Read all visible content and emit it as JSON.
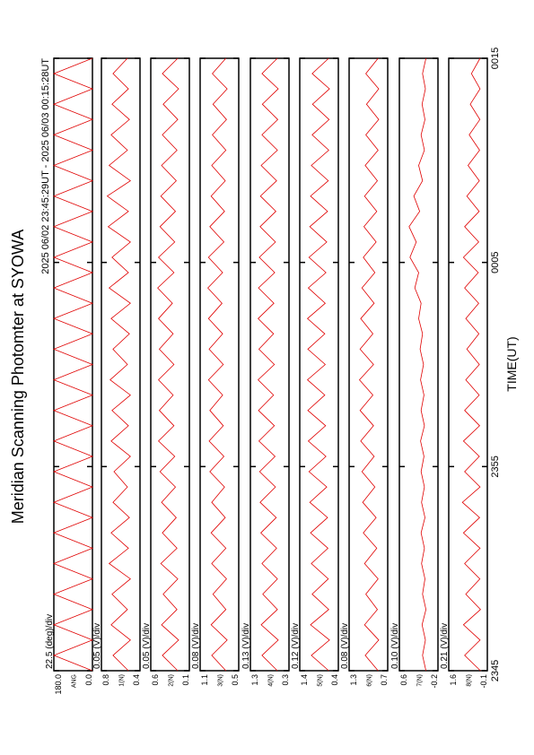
{
  "chart_data": {
    "type": "line",
    "title": "Meridian Scanning Photomter at SYOWA",
    "subtitle": "2025 06/02 23:45:29UT - 2025 06/03 00:15:28UT",
    "xlabel": "TIME(UT)",
    "xlim": [
      0,
      30
    ],
    "xticks": [
      {
        "value": 0,
        "label": "2345"
      },
      {
        "value": 10,
        "label": "2355"
      },
      {
        "value": 20,
        "label": "0005"
      },
      {
        "value": 30,
        "label": "0015"
      }
    ],
    "color": "#e00000",
    "x": [
      0,
      0.75,
      1.5,
      2.25,
      3,
      3.75,
      4.5,
      5.25,
      6,
      6.75,
      7.5,
      8.25,
      9,
      9.75,
      10.5,
      11.25,
      12,
      12.75,
      13.5,
      14.25,
      15,
      15.75,
      16.5,
      17.25,
      18,
      18.75,
      19.5,
      20.25,
      21,
      21.75,
      22.5,
      23.25,
      24,
      24.75,
      25.5,
      26.25,
      27,
      27.75,
      28.5,
      29.25,
      30
    ],
    "panels": [
      {
        "name": "ANG",
        "scale": "22.5 (deg)/div",
        "ylim": [
          0,
          180
        ],
        "yticks": [
          {
            "value": 0,
            "label": "0.0"
          },
          {
            "value": 180,
            "label": "180.0"
          }
        ],
        "values": [
          0,
          180,
          0,
          180,
          0,
          180,
          0,
          180,
          0,
          180,
          0,
          180,
          0,
          180,
          0,
          180,
          0,
          180,
          0,
          180,
          0,
          180,
          0,
          180,
          0,
          180,
          0,
          180,
          0,
          180,
          0,
          180,
          0,
          180,
          0,
          180,
          0,
          180,
          0,
          180,
          0
        ]
      },
      {
        "name": "1(N)",
        "scale": "0.05 (V)/div",
        "ylim": [
          0.4,
          0.8
        ],
        "yticks": [
          0.4,
          0.8
        ],
        "values": [
          0.52,
          0.68,
          0.5,
          0.7,
          0.53,
          0.69,
          0.5,
          0.72,
          0.52,
          0.7,
          0.51,
          0.68,
          0.53,
          0.67,
          0.5,
          0.7,
          0.52,
          0.69,
          0.5,
          0.71,
          0.53,
          0.68,
          0.51,
          0.7,
          0.5,
          0.72,
          0.52,
          0.69,
          0.5,
          0.73,
          0.52,
          0.74,
          0.5,
          0.72,
          0.53,
          0.7,
          0.51,
          0.69,
          0.52,
          0.68,
          0.53
        ]
      },
      {
        "name": "2(N)",
        "scale": "0.05 (V)/div",
        "ylim": [
          0.1,
          0.6
        ],
        "yticks": [
          0.1,
          0.6
        ],
        "values": [
          0.25,
          0.45,
          0.24,
          0.46,
          0.26,
          0.44,
          0.25,
          0.47,
          0.26,
          0.45,
          0.27,
          0.46,
          0.28,
          0.48,
          0.29,
          0.5,
          0.3,
          0.49,
          0.31,
          0.5,
          0.3,
          0.49,
          0.31,
          0.5,
          0.32,
          0.51,
          0.3,
          0.5,
          0.29,
          0.48,
          0.28,
          0.47,
          0.27,
          0.46,
          0.26,
          0.45,
          0.25,
          0.44,
          0.24,
          0.45,
          0.25
        ]
      },
      {
        "name": "3(N)",
        "scale": "0.08 (V)/div",
        "ylim": [
          0.5,
          1.1
        ],
        "yticks": [
          0.5,
          1.1
        ],
        "values": [
          0.7,
          0.92,
          0.68,
          0.93,
          0.7,
          0.9,
          0.69,
          0.92,
          0.7,
          0.93,
          0.71,
          0.92,
          0.72,
          0.95,
          0.73,
          0.96,
          0.74,
          0.95,
          0.75,
          0.97,
          0.74,
          0.96,
          0.75,
          0.97,
          0.76,
          0.98,
          0.75,
          0.97,
          0.73,
          0.95,
          0.72,
          0.93,
          0.71,
          0.92,
          0.7,
          0.91,
          0.69,
          0.9,
          0.68,
          0.91,
          0.7
        ]
      },
      {
        "name": "4(N)",
        "scale": "0.13 (V)/div",
        "ylim": [
          0.3,
          1.3
        ],
        "yticks": [
          0.3,
          1.3
        ],
        "values": [
          0.6,
          1.0,
          0.58,
          1.02,
          0.6,
          0.98,
          0.6,
          1.0,
          0.62,
          1.03,
          0.63,
          1.05,
          0.65,
          1.06,
          0.66,
          1.08,
          0.68,
          1.09,
          0.7,
          1.1,
          0.68,
          1.08,
          0.7,
          1.1,
          0.69,
          1.09,
          0.67,
          1.07,
          0.65,
          1.05,
          0.64,
          1.04,
          0.62,
          1.02,
          0.6,
          1.0,
          0.59,
          0.99,
          0.58,
          1.0,
          0.6
        ]
      },
      {
        "name": "5(N)",
        "scale": "0.12 (V)/div",
        "ylim": [
          0.4,
          1.4
        ],
        "yticks": [
          0.4,
          1.4
        ],
        "values": [
          0.65,
          1.1,
          0.63,
          1.12,
          0.65,
          1.08,
          0.66,
          1.1,
          0.67,
          1.12,
          0.68,
          1.14,
          0.7,
          1.16,
          0.72,
          1.18,
          0.73,
          1.19,
          0.75,
          1.2,
          0.74,
          1.19,
          0.75,
          1.2,
          0.74,
          1.18,
          0.72,
          1.16,
          0.7,
          1.14,
          0.68,
          1.12,
          0.66,
          1.1,
          0.65,
          1.08,
          0.64,
          1.07,
          0.63,
          1.08,
          0.65
        ]
      },
      {
        "name": "6(N)",
        "scale": "0.08 (V)/div",
        "ylim": [
          0.7,
          1.3
        ],
        "yticks": [
          0.7,
          1.3
        ],
        "values": [
          0.85,
          1.05,
          0.84,
          1.06,
          0.86,
          1.04,
          0.85,
          1.06,
          0.87,
          1.08,
          0.88,
          1.09,
          0.9,
          1.1,
          0.91,
          1.12,
          0.92,
          1.13,
          0.93,
          1.14,
          0.92,
          1.13,
          0.93,
          1.12,
          0.91,
          1.1,
          0.9,
          1.08,
          0.88,
          1.07,
          0.87,
          1.06,
          0.86,
          1.05,
          0.85,
          1.04,
          0.84,
          1.03,
          0.84,
          1.04,
          0.85
        ]
      },
      {
        "name": "7(N)",
        "scale": "0.10 (V)/div",
        "ylim": [
          -0.2,
          0.6
        ],
        "yticks": [
          -0.2,
          0.6
        ],
        "values": [
          0.05,
          0.12,
          0.06,
          0.13,
          0.05,
          0.12,
          0.07,
          0.14,
          0.08,
          0.15,
          0.07,
          0.14,
          0.08,
          0.15,
          0.09,
          0.16,
          0.08,
          0.15,
          0.09,
          0.16,
          0.1,
          0.17,
          0.12,
          0.2,
          0.15,
          0.28,
          0.2,
          0.38,
          0.25,
          0.4,
          0.18,
          0.3,
          0.12,
          0.2,
          0.08,
          0.15,
          0.07,
          0.13,
          0.06,
          0.12,
          0.05
        ]
      },
      {
        "name": "8(N)",
        "scale": "0.21 (V)/div",
        "ylim": [
          -0.1,
          1.6
        ],
        "yticks": [
          -0.1,
          1.6
        ],
        "values": [
          0.2,
          0.9,
          0.22,
          0.95,
          0.2,
          0.85,
          0.23,
          0.9,
          0.22,
          0.95,
          0.24,
          1.0,
          0.22,
          0.9,
          0.25,
          0.95,
          0.24,
          0.9,
          0.26,
          0.85,
          0.25,
          0.8,
          0.27,
          0.85,
          0.28,
          0.9,
          0.3,
          0.95,
          0.28,
          0.9,
          0.26,
          0.8,
          0.25,
          0.75,
          0.24,
          0.7,
          0.23,
          0.65,
          0.22,
          0.6,
          0.22
        ]
      }
    ]
  }
}
